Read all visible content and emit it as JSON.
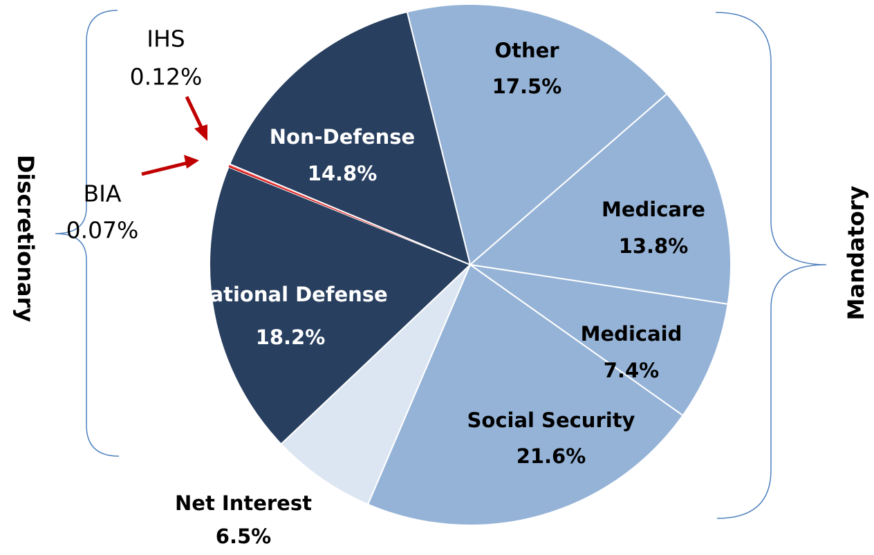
{
  "chart_data": {
    "type": "pie",
    "categories": [
      "Other",
      "Medicare",
      "Medicaid",
      "Social Security",
      "Net Interest",
      "National Defense",
      "BIA",
      "IHS",
      "Non-Defense"
    ],
    "values": [
      17.5,
      13.8,
      7.4,
      21.6,
      6.5,
      18.2,
      0.07,
      0.12,
      14.8
    ],
    "value_labels": [
      "17.5%",
      "13.8%",
      "7.4%",
      "21.6%",
      "6.5%",
      "18.2%",
      "0.07%",
      "0.12%",
      "14.8%"
    ],
    "colors": [
      "#95b3d7",
      "#95b3d7",
      "#95b3d7",
      "#95b3d7",
      "#dce6f2",
      "#283f5f",
      "#c00000",
      "#ff5050",
      "#283f5f"
    ],
    "annotations": [
      "Discretionary",
      "Mandatory"
    ]
  }
}
